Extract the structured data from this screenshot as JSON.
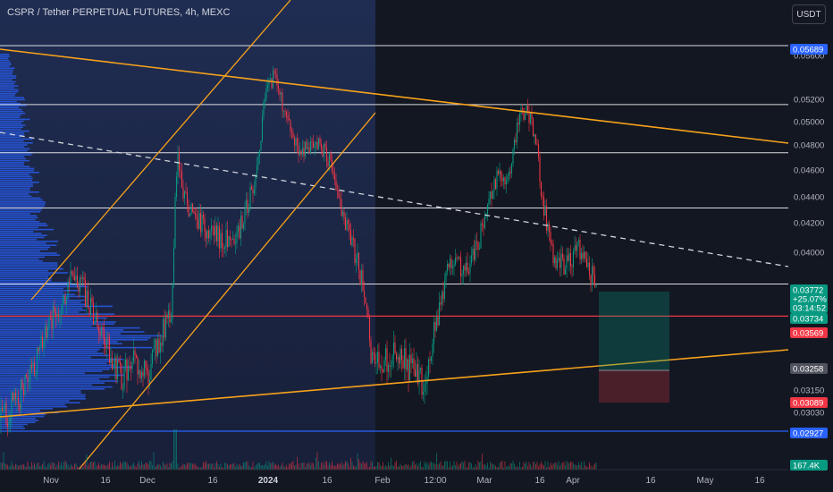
{
  "header": {
    "title": "CSPR / Tether PERPETUAL FUTURES, 4h, MEXC",
    "currency": "USDT"
  },
  "chart_data": {
    "type": "candlestick",
    "symbol": "CSPR / Tether PERPETUAL FUTURES",
    "interval": "4h",
    "exchange": "MEXC",
    "currency": "USDT",
    "price_scale": "log",
    "grid": false,
    "x_ticks": [
      "Nov",
      "16",
      "Dec",
      "16",
      "2024",
      "16",
      "Feb",
      "12:00",
      "Mar",
      "16",
      "Apr",
      "16",
      "May",
      "16"
    ],
    "y_ticks": [
      "0.05600",
      "0.05200",
      "0.05000",
      "0.04800",
      "0.04600",
      "0.04400",
      "0.04200",
      "0.04000",
      "0.03150",
      "0.03030"
    ],
    "price_labels": [
      {
        "value": "0.05689",
        "color": "#2962ff"
      },
      {
        "value": "0.03772",
        "color": "#089981"
      },
      {
        "value": "+25.07%",
        "color": "#089981"
      },
      {
        "value": "03:14:52",
        "color": "#089981"
      },
      {
        "value": "0.03734",
        "color": "#089981"
      },
      {
        "value": "0.03569",
        "color": "#f23645"
      },
      {
        "value": "0.03258",
        "color": "#50535e"
      },
      {
        "value": "0.03089",
        "color": "#f23645"
      },
      {
        "value": "0.02927",
        "color": "#2962ff"
      },
      {
        "value": "167.4K",
        "color": "#089981"
      }
    ],
    "horizontal_levels": [
      {
        "price": 0.05689,
        "color": "#ffffff"
      },
      {
        "price": 0.0514,
        "color": "#ffffff"
      },
      {
        "price": 0.0473,
        "color": "#ffffff"
      },
      {
        "price": 0.043,
        "color": "#ffffff"
      },
      {
        "price": 0.03772,
        "color": "#ffffff"
      },
      {
        "price": 0.03569,
        "color": "#f23645"
      },
      {
        "price": 0.02927,
        "color": "#2962ff"
      }
    ],
    "position_tool": {
      "entry": 0.03258,
      "target": 0.03734,
      "stop": 0.03089
    },
    "colors": {
      "up": "#089981",
      "down": "#f23645",
      "background": "#131722",
      "trendline": "#f7a21b",
      "volume_profile": "#2962ff"
    }
  }
}
